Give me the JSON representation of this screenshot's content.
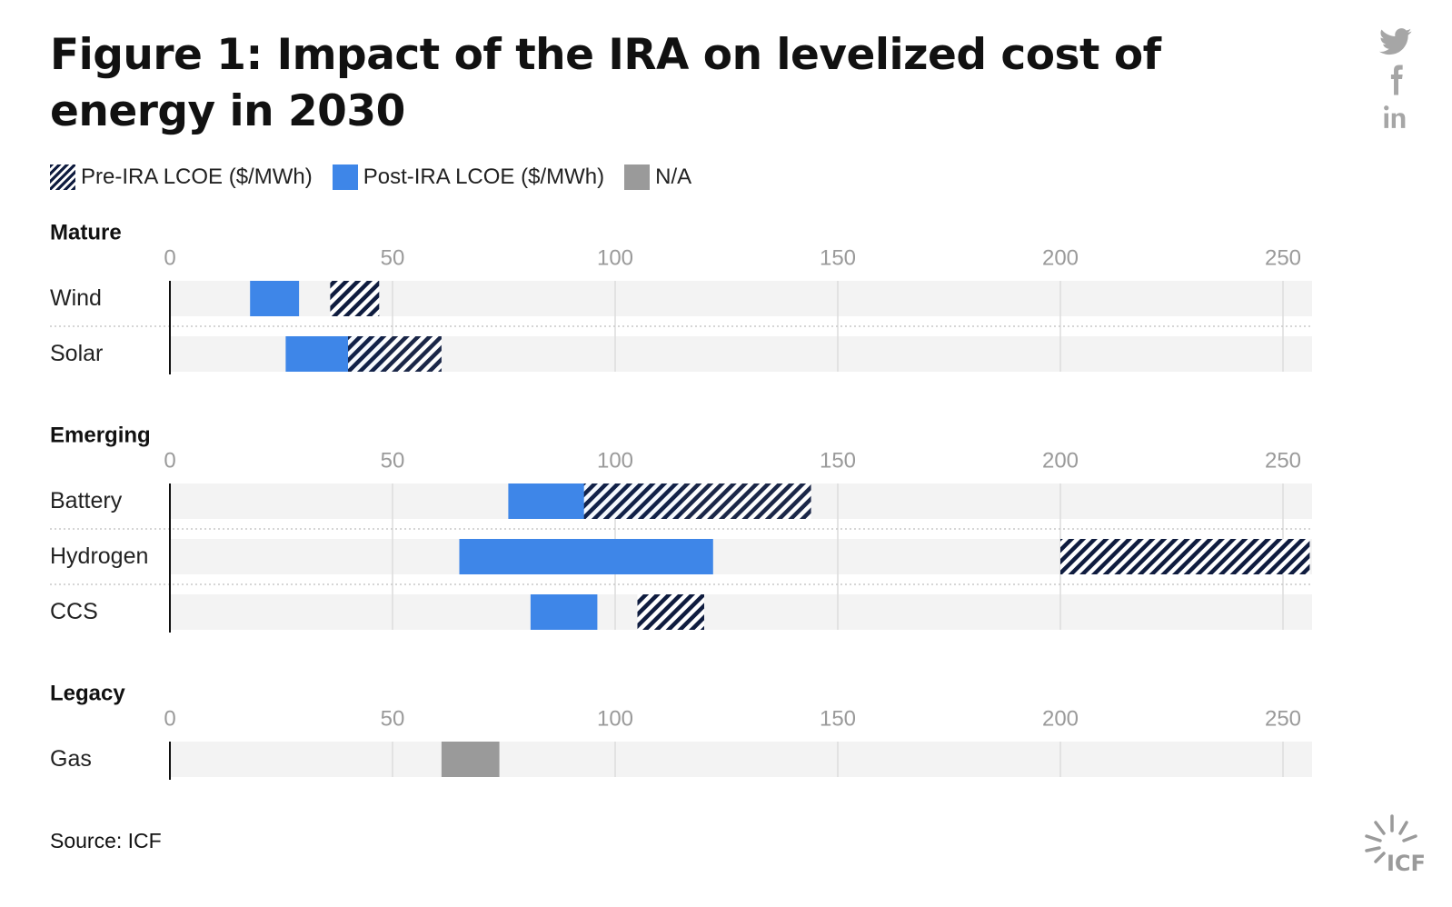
{
  "title": "Figure 1: Impact of the IRA on levelized cost of energy in 2030",
  "legend": {
    "pre": "Pre-IRA LCOE ($/MWh)",
    "post": "Post-IRA LCOE ($/MWh)",
    "na": "N/A"
  },
  "source": "Source: ICF",
  "logo_text": "ICF",
  "share_icons": [
    "twitter-icon",
    "facebook-icon",
    "linkedin-icon"
  ],
  "colors": {
    "pre": "#0f1c3f",
    "post": "#3e86e8",
    "na": "#9a9a9a",
    "track": "#f3f3f3",
    "grid": "#dcdcdc"
  },
  "chart_data": {
    "type": "bar",
    "orientation": "horizontal range (floating bars)",
    "xlim": [
      0,
      256
    ],
    "ticks": [
      0,
      50,
      100,
      150,
      200,
      250
    ],
    "groups": [
      {
        "name": "Mature",
        "rows": [
          {
            "label": "Wind",
            "pre": [
              36,
              47
            ],
            "post": [
              18,
              29
            ]
          },
          {
            "label": "Solar",
            "pre": [
              40,
              61
            ],
            "post": [
              26,
              48
            ]
          }
        ]
      },
      {
        "name": "Emerging",
        "rows": [
          {
            "label": "Battery",
            "pre": [
              93,
              144
            ],
            "post": [
              76,
              115
            ]
          },
          {
            "label": "Hydrogen",
            "pre": [
              200,
              256
            ],
            "post": [
              65,
              122
            ]
          },
          {
            "label": "CCS",
            "pre": [
              105,
              120
            ],
            "post": [
              81,
              96
            ]
          }
        ]
      },
      {
        "name": "Legacy",
        "rows": [
          {
            "label": "Gas",
            "na": [
              61,
              74
            ]
          }
        ]
      }
    ]
  }
}
